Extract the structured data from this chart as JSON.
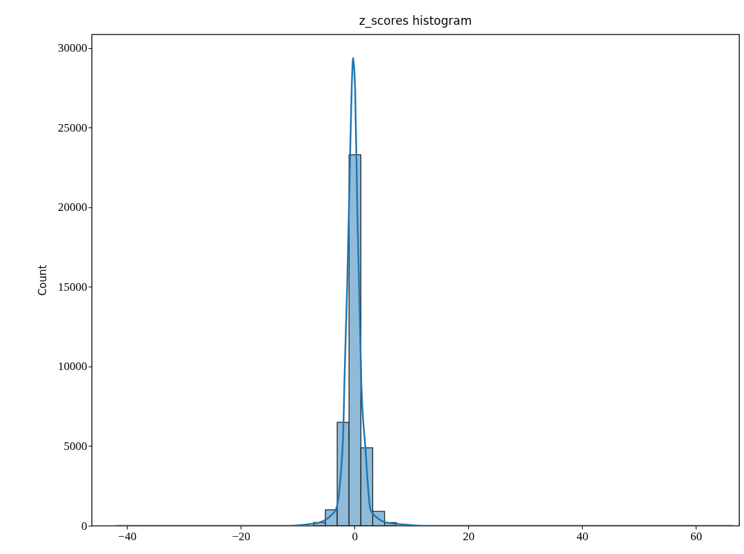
{
  "chart_data": {
    "type": "histogram",
    "title": "z_scores histogram",
    "ylabel": "Count",
    "xlim": [
      -46.2,
      67.6
    ],
    "ylim": [
      0,
      30860
    ],
    "xticks": [
      -40,
      -20,
      0,
      20,
      40,
      60
    ],
    "yticks": [
      0,
      5000,
      10000,
      15000,
      20000,
      25000,
      30000
    ],
    "grid": false,
    "series": [
      {
        "color": "#8fbbd9",
        "bins": [
          -7.21,
          -5.13,
          -3.05,
          -0.97,
          1.11,
          3.19,
          5.27,
          7.35
        ],
        "values": [
          200,
          1000,
          6500,
          23300,
          4900,
          900,
          200
        ]
      },
      {
        "type": "line",
        "color": "#1f77b4",
        "x": [
          -42,
          -30,
          -20,
          -12,
          -8,
          -6.2,
          -5,
          -4,
          -3.3,
          -2.6,
          -1.94,
          -1.8,
          -1.3,
          -0.8,
          -0.5,
          -0.25,
          0,
          0.1,
          0.5,
          1.2,
          1.9,
          2.8,
          4,
          5.6,
          8,
          12,
          20,
          40,
          66.5
        ],
        "values": [
          0,
          0,
          0,
          0,
          100,
          200,
          400,
          700,
          1000,
          2500,
          6500,
          8800,
          15000,
          23000,
          27500,
          29400,
          28300,
          27400,
          19500,
          8800,
          4900,
          1000,
          500,
          200,
          100,
          0,
          0,
          0,
          0
        ]
      }
    ]
  }
}
